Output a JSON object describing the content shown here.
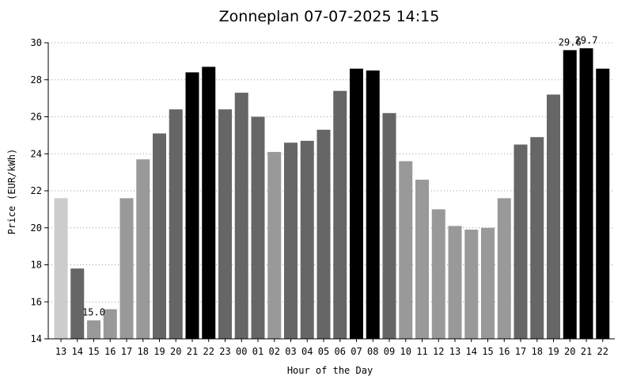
{
  "chart_data": {
    "type": "bar",
    "title": "Zonneplan 07-07-2025 14:15",
    "xlabel": "Hour of the Day",
    "ylabel": "Price (EUR/kWh)",
    "ylim": [
      14,
      30
    ],
    "yticks": [
      14,
      16,
      18,
      20,
      22,
      24,
      26,
      28,
      30
    ],
    "grid": true,
    "categories": [
      "13",
      "14",
      "15",
      "16",
      "17",
      "18",
      "19",
      "20",
      "21",
      "22",
      "23",
      "00",
      "01",
      "02",
      "03",
      "04",
      "05",
      "06",
      "07",
      "08",
      "09",
      "10",
      "11",
      "12",
      "13",
      "14",
      "15",
      "16",
      "17",
      "18",
      "19",
      "20",
      "21",
      "22"
    ],
    "values": [
      21.6,
      17.8,
      15.0,
      15.6,
      21.6,
      23.7,
      25.1,
      26.4,
      28.4,
      28.7,
      26.4,
      27.3,
      26.0,
      24.1,
      24.6,
      24.7,
      25.3,
      27.4,
      28.6,
      28.5,
      26.2,
      23.6,
      22.6,
      21.0,
      20.1,
      19.9,
      20.0,
      21.6,
      24.5,
      24.9,
      27.2,
      29.6,
      29.7,
      28.6
    ],
    "colors": [
      "#cccccc",
      "#666666",
      "#999999",
      "#999999",
      "#999999",
      "#999999",
      "#666666",
      "#666666",
      "#000000",
      "#000000",
      "#666666",
      "#666666",
      "#666666",
      "#999999",
      "#666666",
      "#666666",
      "#666666",
      "#666666",
      "#000000",
      "#000000",
      "#666666",
      "#999999",
      "#999999",
      "#999999",
      "#999999",
      "#999999",
      "#999999",
      "#999999",
      "#666666",
      "#666666",
      "#666666",
      "#000000",
      "#000000",
      "#000000"
    ],
    "annotations": [
      {
        "index": 2,
        "text": "15.0"
      },
      {
        "index": 31,
        "text": "29.6"
      },
      {
        "index": 32,
        "text": "29.7"
      }
    ]
  }
}
